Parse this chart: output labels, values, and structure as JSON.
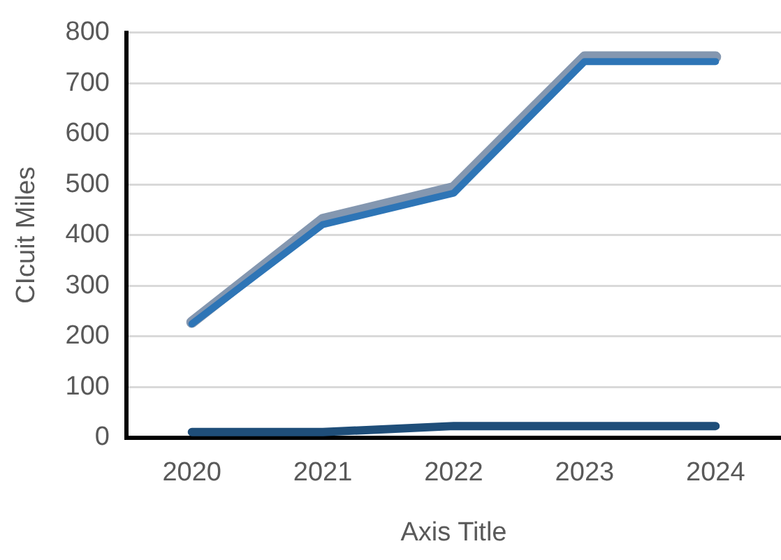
{
  "chart_data": {
    "type": "line",
    "xlabel": "Axis Title",
    "ylabel": "CIcuit Miles",
    "categories": [
      "2020",
      "2021",
      "2022",
      "2023",
      "2024"
    ],
    "series": [
      {
        "color": "#2e75b6",
        "values": [
          225,
          421,
          483,
          743,
          743
        ]
      },
      {
        "color": "#8497b0",
        "values": [
          228,
          431,
          494,
          752,
          752
        ]
      },
      {
        "color": "#1f4e79",
        "values": [
          11,
          11,
          23,
          23,
          23
        ]
      }
    ],
    "ylim": [
      0,
      800
    ],
    "yticks": [
      0,
      100,
      200,
      300,
      400,
      500,
      600,
      700,
      800
    ],
    "grid": "y",
    "legend": false,
    "marker": "none",
    "line_style": "solid"
  }
}
